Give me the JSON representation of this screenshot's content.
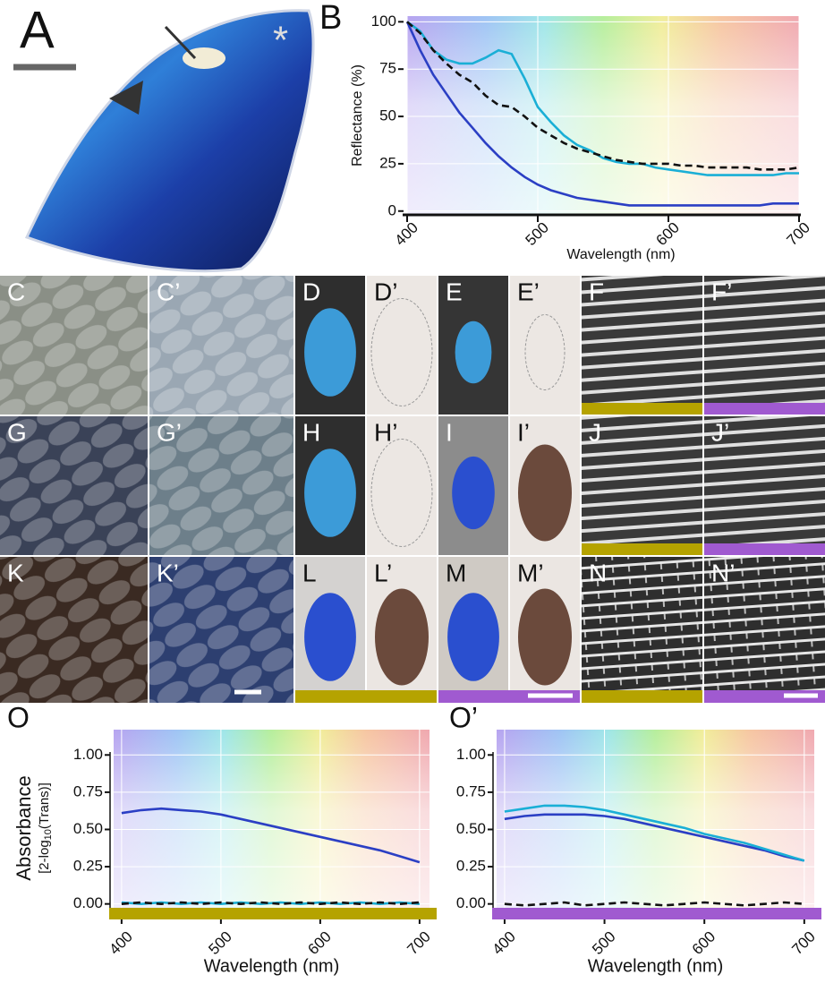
{
  "panels": [
    "A",
    "B",
    "C",
    "C’",
    "D",
    "D’",
    "E",
    "E’",
    "F",
    "F’",
    "G",
    "G’",
    "H",
    "H’",
    "I",
    "I’",
    "J",
    "J’",
    "K",
    "K’",
    "L",
    "L’",
    "M",
    "M’",
    "N",
    "N’",
    "O",
    "O’"
  ],
  "wing_marker": "*",
  "chart_data": [
    {
      "type": "line",
      "xlabel": "Wavelength (nm)",
      "ylabel": "Reflectance (%)",
      "xlim": [
        400,
        700
      ],
      "ylim": [
        -2,
        103
      ],
      "xticks": [
        400,
        500,
        600,
        700
      ],
      "yticks": [
        0,
        25,
        50,
        75,
        100
      ],
      "x": [
        400,
        410,
        420,
        430,
        440,
        450,
        460,
        470,
        480,
        490,
        500,
        510,
        520,
        530,
        540,
        550,
        560,
        570,
        580,
        590,
        600,
        610,
        620,
        630,
        640,
        650,
        660,
        670,
        680,
        690,
        700
      ],
      "series": [
        {
          "color": "#1aafd6",
          "dash": false,
          "values": [
            100,
            95,
            85,
            80,
            78,
            78,
            81,
            85,
            83,
            70,
            55,
            47,
            40,
            35,
            32,
            28,
            26,
            25,
            25,
            23,
            22,
            21,
            20,
            19,
            19,
            19,
            19,
            19,
            19,
            20,
            20
          ]
        },
        {
          "color": "#2b3fc4",
          "dash": false,
          "values": [
            100,
            85,
            72,
            62,
            52,
            44,
            36,
            29,
            23,
            18,
            14,
            11,
            9,
            7,
            6,
            5,
            4,
            3,
            3,
            3,
            3,
            3,
            3,
            3,
            3,
            3,
            3,
            3,
            4,
            4,
            4
          ]
        },
        {
          "color": "#111111",
          "dash": true,
          "values": [
            100,
            94,
            85,
            78,
            72,
            68,
            61,
            56,
            55,
            50,
            44,
            40,
            36,
            33,
            31,
            29,
            27,
            26,
            25,
            25,
            25,
            24,
            24,
            23,
            23,
            23,
            23,
            22,
            22,
            22,
            23
          ]
        }
      ]
    },
    {
      "type": "line",
      "xlabel": "Wavelength (nm)",
      "ylabel": "Absorbance",
      "ylabel_sub": [
        "[2-log",
        "10",
        "(Trans)]"
      ],
      "xlim": [
        392,
        710
      ],
      "ylim": [
        -0.05,
        1.17
      ],
      "xticks": [
        400,
        500,
        600,
        700
      ],
      "yticks": [
        {
          "value": 0,
          "label": "0.00"
        },
        {
          "value": 0.25,
          "label": "0.25"
        },
        {
          "value": 0.5,
          "label": "0.50"
        },
        {
          "value": 0.75,
          "label": "0.75"
        },
        {
          "value": 1,
          "label": "1.00"
        }
      ],
      "x": [
        400,
        420,
        440,
        460,
        480,
        500,
        520,
        540,
        560,
        580,
        600,
        620,
        640,
        660,
        680,
        700
      ],
      "series": [
        {
          "color": "#2b3fc4",
          "dash": false,
          "values": [
            0.61,
            0.63,
            0.64,
            0.63,
            0.62,
            0.6,
            0.57,
            0.54,
            0.51,
            0.48,
            0.45,
            0.42,
            0.39,
            0.36,
            0.32,
            0.28
          ]
        },
        {
          "color": "#1aafd6",
          "dash": false,
          "values": [
            0.01,
            0,
            0.01,
            0,
            0.01,
            0,
            0.01,
            0,
            0.01,
            0,
            0.01,
            0,
            0.01,
            0,
            0.01,
            0
          ]
        },
        {
          "color": "#111111",
          "dash": true,
          "values": [
            0,
            0.01,
            0,
            0.01,
            0,
            0.01,
            0,
            0.01,
            0,
            0.01,
            0,
            0.01,
            0,
            0.01,
            0,
            0.01
          ]
        }
      ]
    },
    {
      "type": "line",
      "xlabel": "Wavelength (nm)",
      "xlim": [
        392,
        710
      ],
      "ylim": [
        -0.05,
        1.17
      ],
      "xticks": [
        400,
        500,
        600,
        700
      ],
      "yticks": [
        {
          "value": 0,
          "label": "0.00"
        },
        {
          "value": 0.25,
          "label": "0.25"
        },
        {
          "value": 0.5,
          "label": "0.50"
        },
        {
          "value": 0.75,
          "label": "0.75"
        },
        {
          "value": 1,
          "label": "1.00"
        }
      ],
      "x": [
        400,
        420,
        440,
        460,
        480,
        500,
        520,
        540,
        560,
        580,
        600,
        620,
        640,
        660,
        680,
        700
      ],
      "series": [
        {
          "color": "#2b3fc4",
          "dash": false,
          "values": [
            0.57,
            0.59,
            0.6,
            0.6,
            0.6,
            0.59,
            0.57,
            0.54,
            0.51,
            0.48,
            0.45,
            0.42,
            0.39,
            0.36,
            0.32,
            0.29
          ]
        },
        {
          "color": "#1aafd6",
          "dash": false,
          "values": [
            0.62,
            0.64,
            0.66,
            0.66,
            0.65,
            0.63,
            0.6,
            0.57,
            0.54,
            0.51,
            0.47,
            0.44,
            0.41,
            0.37,
            0.33,
            0.29
          ]
        },
        {
          "color": "#111111",
          "dash": true,
          "values": [
            0,
            -0.01,
            0,
            0.01,
            -0.01,
            0,
            0.01,
            0,
            -0.01,
            0,
            0.01,
            0,
            -0.01,
            0,
            0.01,
            0
          ]
        }
      ]
    }
  ]
}
